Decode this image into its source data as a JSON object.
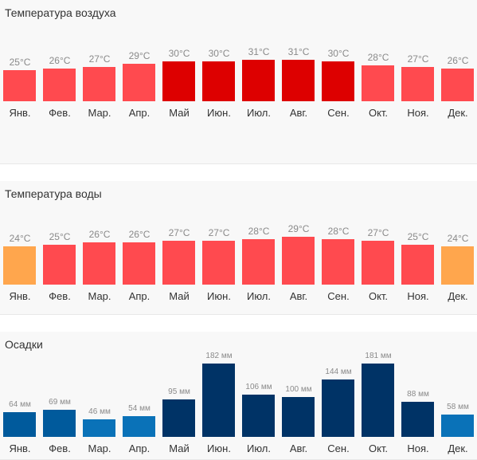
{
  "chart_data": [
    {
      "type": "bar",
      "title": "Температура воздуха",
      "categories": [
        "Янв.",
        "Фев.",
        "Мар.",
        "Апр.",
        "Май",
        "Июн.",
        "Июл.",
        "Авг.",
        "Сен.",
        "Окт.",
        "Ноя.",
        "Дек."
      ],
      "values": [
        25,
        26,
        27,
        29,
        30,
        30,
        31,
        31,
        30,
        28,
        27,
        26
      ],
      "labels": [
        "25°C",
        "26°C",
        "27°C",
        "29°C",
        "30°C",
        "30°C",
        "31°C",
        "31°C",
        "30°C",
        "28°C",
        "27°C",
        "26°C"
      ],
      "colors": [
        "#ff4a4f",
        "#ff4a4f",
        "#ff4a4f",
        "#ff4a4f",
        "#dd0000",
        "#dd0000",
        "#dd0000",
        "#dd0000",
        "#dd0000",
        "#ff4a4f",
        "#ff4a4f",
        "#ff4a4f"
      ]
    },
    {
      "type": "bar",
      "title": "Температура воды",
      "categories": [
        "Янв.",
        "Фев.",
        "Мар.",
        "Апр.",
        "Май",
        "Июн.",
        "Июл.",
        "Авг.",
        "Сен.",
        "Окт.",
        "Ноя.",
        "Дек."
      ],
      "values": [
        24,
        25,
        26,
        26,
        27,
        27,
        28,
        29,
        28,
        27,
        25,
        24
      ],
      "labels": [
        "24°C",
        "25°C",
        "26°C",
        "26°C",
        "27°C",
        "27°C",
        "28°C",
        "29°C",
        "28°C",
        "27°C",
        "25°C",
        "24°C"
      ],
      "colors": [
        "#ffa64d",
        "#ff4a4f",
        "#ff4a4f",
        "#ff4a4f",
        "#ff4a4f",
        "#ff4a4f",
        "#ff4a4f",
        "#ff4a4f",
        "#ff4a4f",
        "#ff4a4f",
        "#ff4a4f",
        "#ffa64d"
      ]
    },
    {
      "type": "bar",
      "title": "Осадки",
      "categories": [
        "Янв.",
        "Фев.",
        "Мар.",
        "Апр.",
        "Май",
        "Июн.",
        "Июл.",
        "Авг.",
        "Сен.",
        "Окт.",
        "Ноя.",
        "Дек."
      ],
      "values": [
        64,
        69,
        46,
        54,
        95,
        182,
        106,
        100,
        144,
        181,
        88,
        58
      ],
      "labels": [
        "64 мм",
        "69 мм",
        "46 мм",
        "54 мм",
        "95 мм",
        "182 мм",
        "106 мм",
        "100 мм",
        "144 мм",
        "181 мм",
        "88 мм",
        "58 мм"
      ],
      "colors": [
        "#005a9c",
        "#005a9c",
        "#0a72b8",
        "#0a72b8",
        "#003366",
        "#003366",
        "#003366",
        "#003366",
        "#003366",
        "#003366",
        "#003366",
        "#0a72b8"
      ]
    }
  ]
}
